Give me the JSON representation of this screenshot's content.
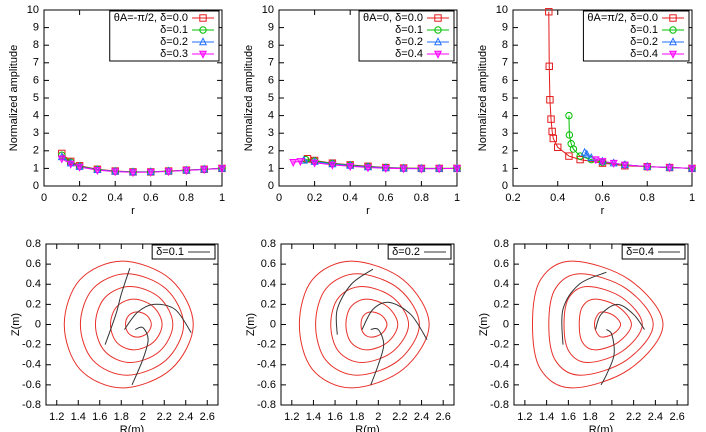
{
  "chart_data": [
    {
      "type": "line",
      "xlabel": "r",
      "ylabel": "Normalized amplitude",
      "xlim": [
        0,
        1
      ],
      "xticks": [
        0,
        0.2,
        0.4,
        0.6,
        0.8,
        1
      ],
      "ylim": [
        0,
        10
      ],
      "yticks": [
        0,
        1,
        2,
        3,
        4,
        5,
        6,
        7,
        8,
        9,
        10
      ],
      "legend": "top-right",
      "series": [
        {
          "name": "θA=-π/2, δ=0.0",
          "color": "#e41a1c",
          "marker": "square",
          "x": [
            0.1,
            0.15,
            0.2,
            0.3,
            0.4,
            0.5,
            0.6,
            0.7,
            0.8,
            0.9,
            1.0
          ],
          "values": [
            1.85,
            1.4,
            1.15,
            0.95,
            0.85,
            0.8,
            0.8,
            0.85,
            0.9,
            0.95,
            1.0
          ]
        },
        {
          "name": "δ=0.1",
          "color": "#00c000",
          "marker": "circle",
          "x": [
            0.1,
            0.15,
            0.2,
            0.3,
            0.4,
            0.5,
            0.6,
            0.7,
            0.8,
            0.9,
            1.0
          ],
          "values": [
            1.75,
            1.35,
            1.12,
            0.93,
            0.84,
            0.8,
            0.8,
            0.84,
            0.9,
            0.95,
            1.0
          ]
        },
        {
          "name": "δ=0.2",
          "color": "#1f6fff",
          "marker": "triangle",
          "x": [
            0.1,
            0.15,
            0.2,
            0.3,
            0.4,
            0.5,
            0.6,
            0.7,
            0.8,
            0.9,
            1.0
          ],
          "values": [
            1.65,
            1.3,
            1.1,
            0.92,
            0.83,
            0.79,
            0.8,
            0.84,
            0.89,
            0.95,
            1.0
          ]
        },
        {
          "name": "δ=0.3",
          "color": "#ff00ff",
          "marker": "triangle-down",
          "x": [
            0.1,
            0.15,
            0.2,
            0.3,
            0.4,
            0.5,
            0.6,
            0.7,
            0.8,
            0.9,
            1.0
          ],
          "values": [
            1.55,
            1.25,
            1.08,
            0.9,
            0.82,
            0.78,
            0.79,
            0.83,
            0.89,
            0.94,
            1.0
          ]
        }
      ]
    },
    {
      "type": "line",
      "xlabel": "r",
      "ylabel": "Normalized amplitude",
      "xlim": [
        0,
        1
      ],
      "xticks": [
        0,
        0.2,
        0.4,
        0.6,
        0.8,
        1
      ],
      "ylim": [
        0,
        10
      ],
      "yticks": [
        0,
        1,
        2,
        3,
        4,
        5,
        6,
        7,
        8,
        9,
        10
      ],
      "legend": "top-right",
      "series": [
        {
          "name": "θA=0, δ=0.0",
          "color": "#e41a1c",
          "marker": "square",
          "x": [
            0.16,
            0.2,
            0.3,
            0.4,
            0.5,
            0.6,
            0.7,
            0.8,
            0.9,
            1.0
          ],
          "values": [
            1.55,
            1.45,
            1.3,
            1.2,
            1.12,
            1.05,
            1.02,
            1.0,
            1.0,
            1.0
          ]
        },
        {
          "name": "δ=0.1",
          "color": "#00c000",
          "marker": "circle",
          "x": [
            0.15,
            0.2,
            0.3,
            0.4,
            0.5,
            0.6,
            0.7,
            0.8,
            0.9,
            1.0
          ],
          "values": [
            1.5,
            1.42,
            1.28,
            1.18,
            1.1,
            1.04,
            1.01,
            1.0,
            1.0,
            1.0
          ]
        },
        {
          "name": "δ=0.2",
          "color": "#1f6fff",
          "marker": "triangle",
          "x": [
            0.14,
            0.2,
            0.3,
            0.4,
            0.5,
            0.6,
            0.7,
            0.8,
            0.9,
            1.0
          ],
          "values": [
            1.45,
            1.38,
            1.25,
            1.16,
            1.08,
            1.03,
            1.0,
            0.99,
            0.99,
            1.0
          ]
        },
        {
          "name": "δ=0.4",
          "color": "#ff00ff",
          "marker": "triangle-down",
          "x": [
            0.08,
            0.12,
            0.2,
            0.3,
            0.4,
            0.5,
            0.6,
            0.7,
            0.8,
            0.9,
            1.0
          ],
          "values": [
            1.35,
            1.4,
            1.32,
            1.2,
            1.12,
            1.05,
            1.01,
            0.99,
            0.98,
            0.99,
            1.0
          ]
        }
      ]
    },
    {
      "type": "line",
      "xlabel": "r",
      "ylabel": "Normalized amplitude",
      "xlim": [
        0.2,
        1
      ],
      "xticks": [
        0.2,
        0.4,
        0.6,
        0.8,
        1
      ],
      "ylim": [
        0,
        10
      ],
      "yticks": [
        0,
        1,
        2,
        3,
        4,
        5,
        6,
        7,
        8,
        9,
        10
      ],
      "legend": "top-right",
      "series": [
        {
          "name": "θA=π/2, δ=0.0",
          "color": "#e41a1c",
          "marker": "square",
          "x": [
            0.36,
            0.362,
            0.365,
            0.37,
            0.375,
            0.38,
            0.4,
            0.45,
            0.5,
            0.6,
            0.7,
            0.8,
            0.9,
            1.0
          ],
          "values": [
            9.9,
            6.8,
            4.9,
            3.8,
            3.1,
            2.7,
            2.2,
            1.7,
            1.5,
            1.3,
            1.15,
            1.1,
            1.05,
            1.0
          ]
        },
        {
          "name": "δ=0.1",
          "color": "#00c000",
          "marker": "circle",
          "x": [
            0.45,
            0.452,
            0.46,
            0.47,
            0.5,
            0.55,
            0.6,
            0.7,
            0.8,
            0.9,
            1.0
          ],
          "values": [
            4.0,
            2.9,
            2.4,
            2.1,
            1.7,
            1.5,
            1.35,
            1.2,
            1.1,
            1.05,
            1.0
          ]
        },
        {
          "name": "δ=0.2",
          "color": "#1f6fff",
          "marker": "triangle",
          "x": [
            0.52,
            0.53,
            0.55,
            0.6,
            0.65,
            0.7,
            0.8,
            0.9,
            1.0
          ],
          "values": [
            1.9,
            1.8,
            1.6,
            1.4,
            1.3,
            1.2,
            1.1,
            1.05,
            1.0
          ]
        },
        {
          "name": "δ=0.4",
          "color": "#ff00ff",
          "marker": "triangle-down",
          "x": [
            0.57,
            0.6,
            0.65,
            0.7,
            0.8,
            0.9,
            1.0
          ],
          "values": [
            1.5,
            1.4,
            1.3,
            1.2,
            1.1,
            1.05,
            1.0
          ]
        }
      ]
    },
    {
      "type": "line",
      "xlabel": "R(m)",
      "ylabel": "Z(m)",
      "xlim": [
        1.1,
        2.7
      ],
      "xticks": [
        1.2,
        1.4,
        1.6,
        1.8,
        2,
        2.2,
        2.4,
        2.6
      ],
      "ylim": [
        -0.8,
        0.8
      ],
      "yticks": [
        -0.8,
        -0.6,
        -0.4,
        -0.2,
        0,
        0.2,
        0.4,
        0.6,
        0.8
      ],
      "legend": "top-right",
      "smooth": true,
      "series": [
        {
          "color": "#e8302a",
          "closed": true,
          "x": [
            2.47,
            2.263,
            1.81,
            1.416,
            1.27,
            1.416,
            1.81,
            2.263,
            null,
            2.38,
            2.214,
            1.852,
            1.537,
            1.42,
            1.537,
            1.852,
            2.214,
            null,
            2.28,
            2.156,
            1.884,
            1.648,
            1.56,
            1.648,
            1.884,
            2.156,
            null,
            2.18,
            2.097,
            1.916,
            1.759,
            1.7,
            1.759,
            1.916,
            2.097,
            null,
            2.08,
            2.039,
            1.948,
            1.869,
            1.84,
            1.869,
            1.948,
            2.039
          ],
          "values": [
            0,
            0.445,
            0.63,
            0.445,
            0,
            -0.445,
            -0.63,
            -0.445,
            null,
            0,
            0.356,
            0.504,
            0.356,
            0,
            -0.356,
            -0.504,
            -0.356,
            null,
            0,
            0.267,
            0.378,
            0.267,
            0,
            -0.267,
            -0.378,
            -0.267,
            null,
            0,
            0.178,
            0.252,
            0.178,
            0,
            -0.178,
            -0.252,
            -0.178,
            null,
            0,
            0.089,
            0.126,
            0.089,
            0,
            -0.089,
            -0.126,
            -0.089
          ]
        },
        {
          "name": "δ=0.1",
          "color": "#333333",
          "x": [
            1.88,
            1.8,
            1.75,
            1.65,
            null,
            2.45,
            2.3,
            2.1,
            1.95,
            1.83,
            null,
            1.93,
            2.0,
            2.05,
            2.0,
            1.9
          ],
          "values": [
            0.56,
            0.3,
            0.1,
            -0.2,
            null,
            -0.08,
            0.15,
            0.2,
            0.12,
            -0.05,
            null,
            -0.05,
            -0.03,
            -0.15,
            -0.35,
            -0.6
          ]
        }
      ]
    },
    {
      "type": "line",
      "xlabel": "R(m)",
      "ylabel": "Z(m)",
      "xlim": [
        1.1,
        2.7
      ],
      "xticks": [
        1.2,
        1.4,
        1.6,
        1.8,
        2,
        2.2,
        2.4,
        2.6
      ],
      "ylim": [
        -0.8,
        0.8
      ],
      "yticks": [
        -0.8,
        -0.6,
        -0.4,
        -0.2,
        0,
        0.2,
        0.4,
        0.6,
        0.8
      ],
      "legend": "top-right",
      "smooth": true,
      "series": [
        {
          "color": "#e8302a",
          "closed": true,
          "x": [
            2.47,
            2.23,
            1.751,
            1.39,
            1.27,
            1.39,
            1.751,
            2.23,
            null,
            2.38,
            2.188,
            1.804,
            1.516,
            1.42,
            1.516,
            1.804,
            2.188,
            null,
            2.28,
            2.136,
            1.848,
            1.632,
            1.56,
            1.632,
            1.848,
            2.136,
            null,
            2.18,
            2.084,
            1.892,
            1.748,
            1.7,
            1.748,
            1.892,
            2.084,
            null,
            2.08,
            2.032,
            1.936,
            1.864,
            1.84,
            1.864,
            1.936,
            2.032
          ],
          "values": [
            0,
            0.445,
            0.63,
            0.445,
            0,
            -0.445,
            -0.63,
            -0.445,
            null,
            0,
            0.356,
            0.504,
            0.356,
            0,
            -0.356,
            -0.504,
            -0.356,
            null,
            0,
            0.267,
            0.378,
            0.267,
            0,
            -0.267,
            -0.378,
            -0.267,
            null,
            0,
            0.178,
            0.252,
            0.178,
            0,
            -0.178,
            -0.252,
            -0.178,
            null,
            0,
            0.089,
            0.126,
            0.089,
            0,
            -0.089,
            -0.126,
            -0.089
          ]
        },
        {
          "name": "δ=0.2",
          "color": "#333333",
          "x": [
            1.95,
            1.75,
            1.62,
            1.62,
            null,
            2.45,
            2.3,
            2.1,
            1.95,
            1.85,
            null,
            1.93,
            2.0,
            2.05,
            2.0,
            1.93
          ],
          "values": [
            0.55,
            0.4,
            0.15,
            -0.1,
            null,
            -0.15,
            0.1,
            0.22,
            0.15,
            -0.05,
            null,
            -0.05,
            -0.05,
            -0.2,
            -0.4,
            -0.6
          ]
        }
      ]
    },
    {
      "type": "line",
      "xlabel": "R(m)",
      "ylabel": "Z(m)",
      "xlim": [
        1.1,
        2.7
      ],
      "xticks": [
        1.2,
        1.4,
        1.6,
        1.8,
        2,
        2.2,
        2.4,
        2.6
      ],
      "ylim": [
        -0.8,
        0.8
      ],
      "yticks": [
        -0.8,
        -0.6,
        -0.4,
        -0.2,
        0,
        0.2,
        0.4,
        0.6,
        0.8
      ],
      "legend": "top-right",
      "smooth": true,
      "series": [
        {
          "color": "#e8302a",
          "closed": true,
          "x": [
            2.47,
            2.16,
            1.637,
            1.344,
            1.27,
            1.344,
            1.637,
            2.16,
            null,
            2.38,
            2.132,
            1.713,
            1.48,
            1.42,
            1.48,
            1.713,
            2.132,
            null,
            2.28,
            2.094,
            1.78,
            1.605,
            1.56,
            1.605,
            1.78,
            2.094,
            null,
            2.18,
            2.056,
            1.847,
            1.73,
            1.7,
            1.73,
            1.847,
            2.056,
            null,
            2.08,
            2.018,
            1.913,
            1.865,
            1.84,
            1.865,
            1.913,
            2.018
          ],
          "values": [
            0,
            0.445,
            0.63,
            0.445,
            0,
            -0.445,
            -0.63,
            -0.445,
            null,
            0,
            0.356,
            0.504,
            0.356,
            0,
            -0.356,
            -0.504,
            -0.356,
            null,
            0,
            0.267,
            0.378,
            0.267,
            0,
            -0.267,
            -0.378,
            -0.267,
            null,
            0,
            0.178,
            0.252,
            0.178,
            0,
            -0.178,
            -0.252,
            -0.178,
            null,
            0,
            0.089,
            0.126,
            0.089,
            0,
            -0.089,
            -0.126,
            -0.089
          ]
        },
        {
          "name": "δ=0.4",
          "color": "#333333",
          "x": [
            1.95,
            1.7,
            1.55,
            1.55,
            null,
            2.3,
            2.2,
            2.05,
            1.9,
            1.85,
            null,
            1.95,
            2.0,
            2.02,
            1.95,
            1.9
          ],
          "values": [
            0.52,
            0.4,
            0.15,
            -0.2,
            null,
            -0.05,
            0.1,
            0.2,
            0.1,
            -0.05,
            null,
            -0.05,
            -0.1,
            -0.3,
            -0.5,
            -0.6
          ]
        }
      ]
    }
  ]
}
